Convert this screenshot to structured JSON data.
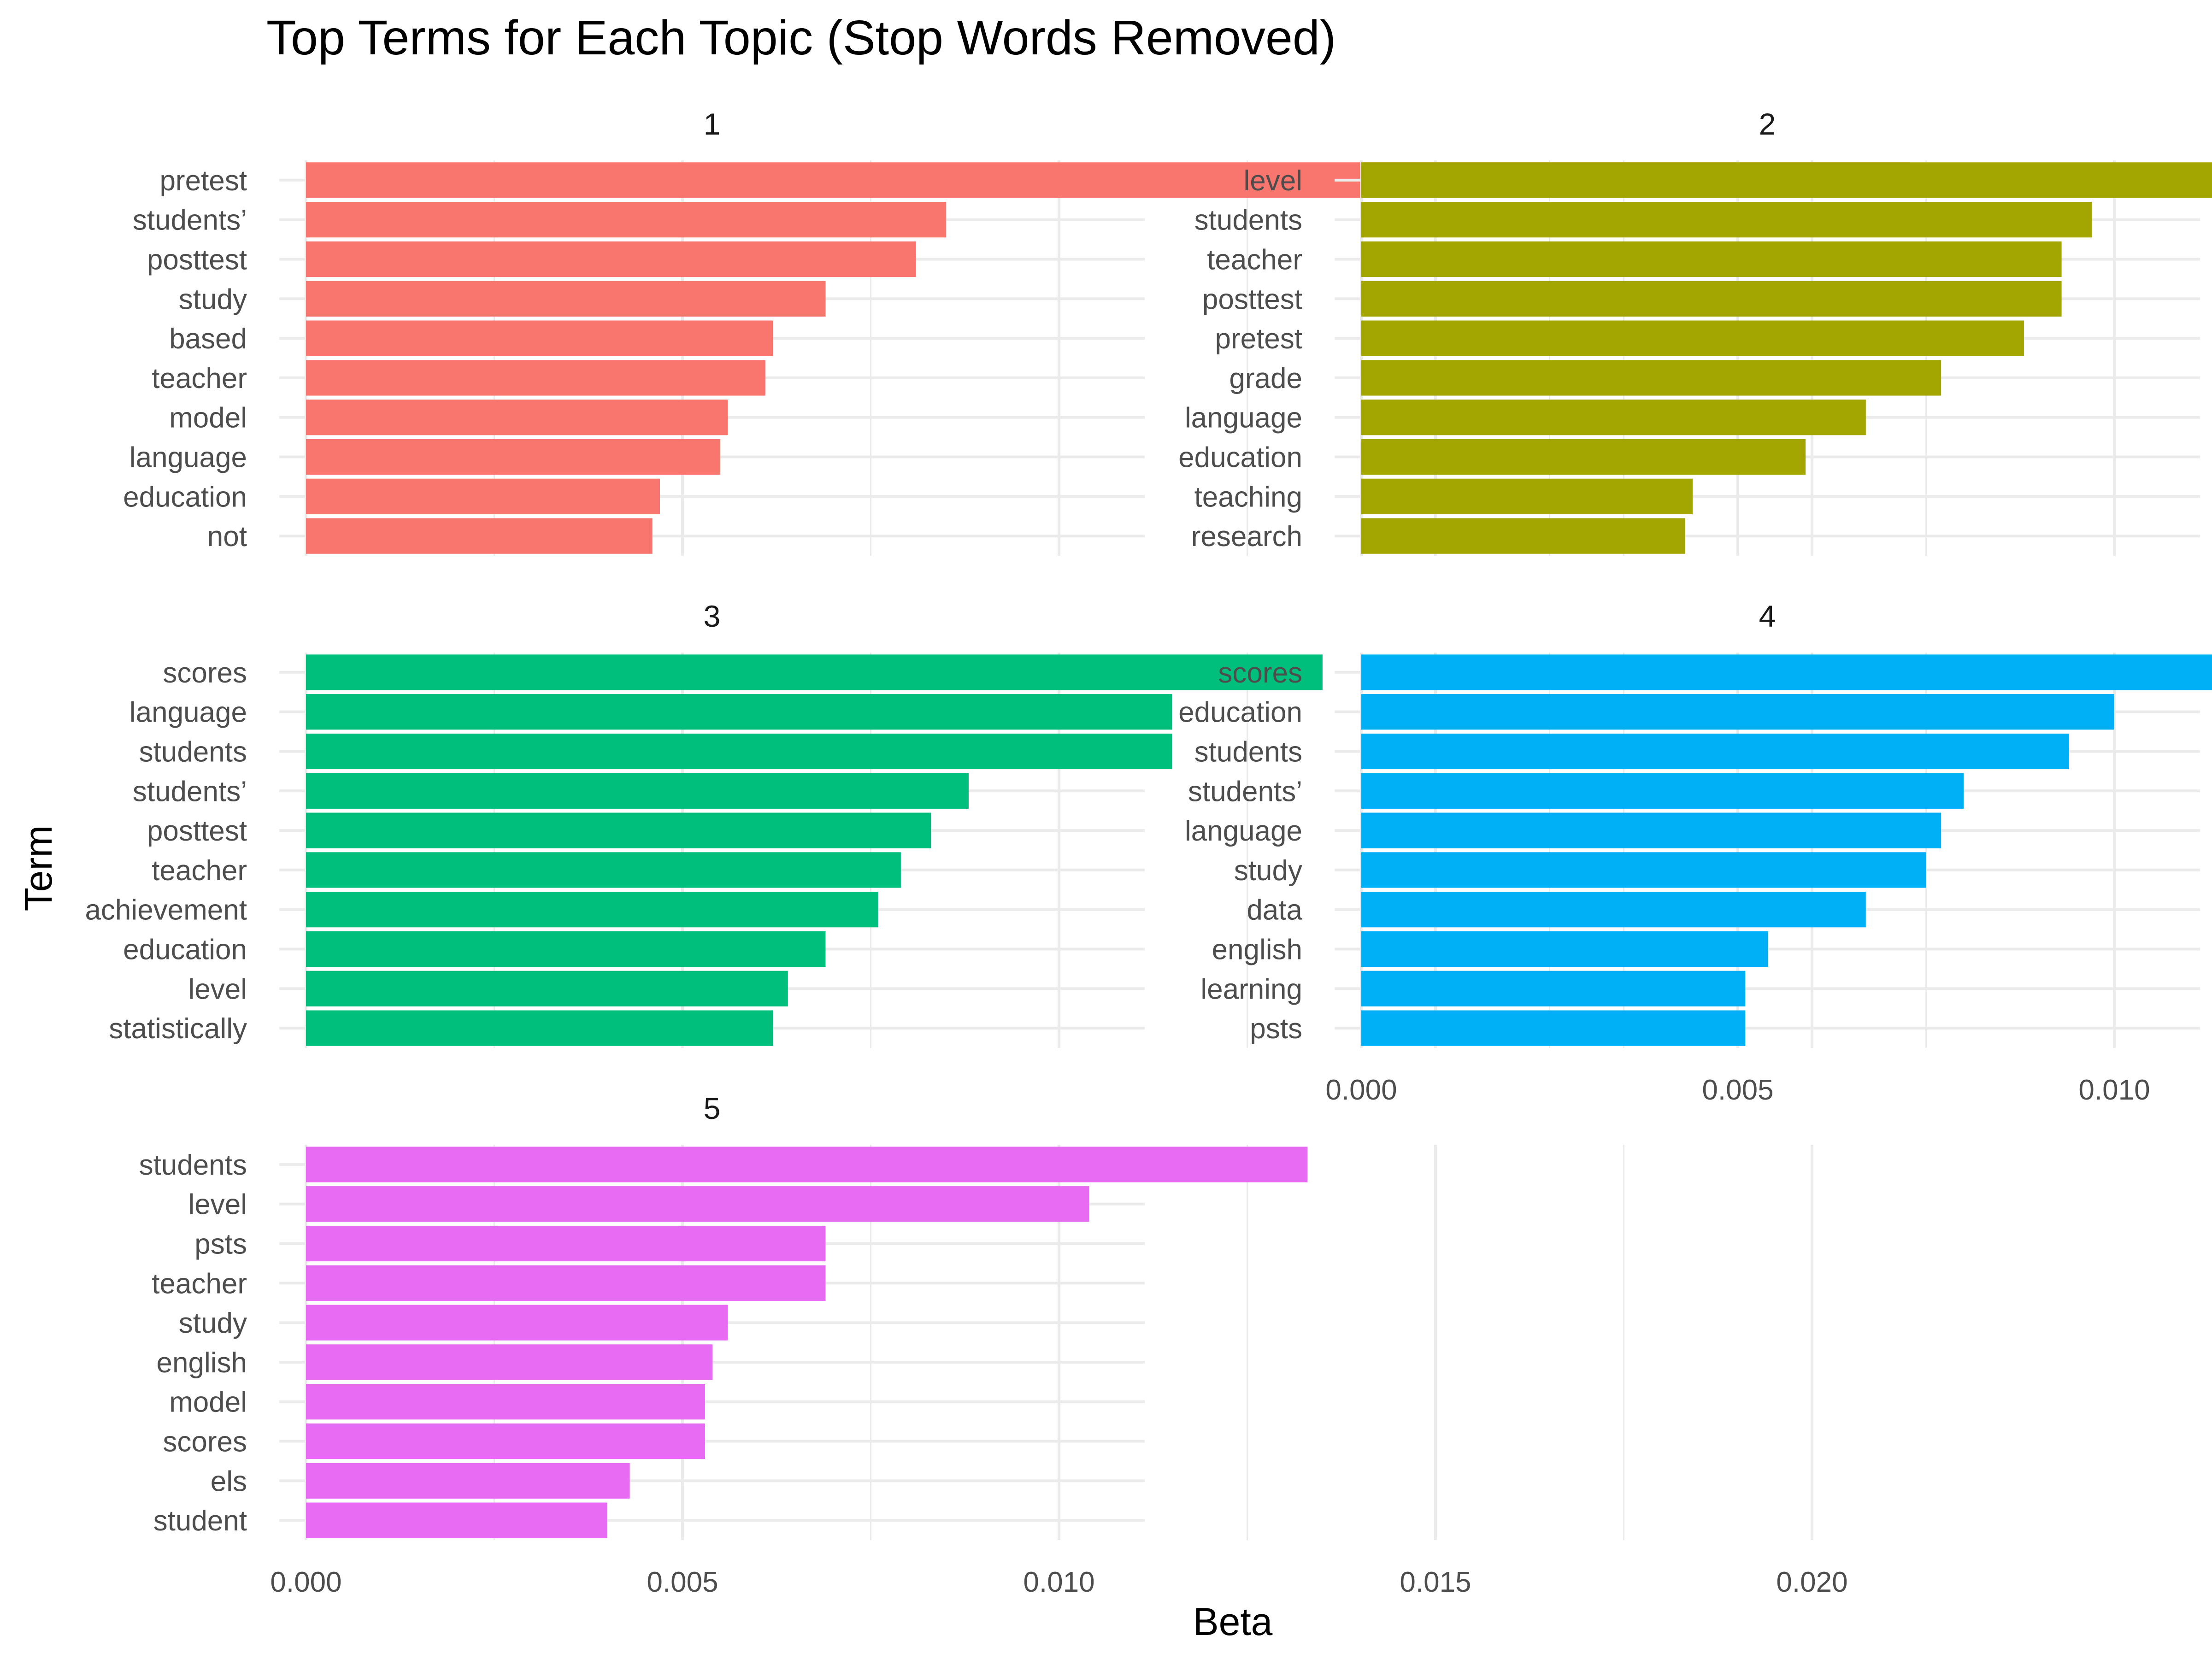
{
  "chart_data": {
    "type": "bar",
    "orientation": "horizontal",
    "title": "Top Terms for Each Topic (Stop Words Removed)",
    "xlabel": "Beta",
    "ylabel": "Term",
    "xlim": [
      0,
      0.022
    ],
    "x_ticks": [
      "0.000",
      "0.005",
      "0.010",
      "0.015",
      "0.020"
    ],
    "grid": true,
    "legend": "none",
    "facets": [
      {
        "label": "1",
        "color": "#F8766D",
        "terms": [
          "pretest",
          "students’",
          "posttest",
          "study",
          "based",
          "teacher",
          "model",
          "language",
          "education",
          "not"
        ],
        "values": [
          0.0213,
          0.0085,
          0.0081,
          0.0069,
          0.0062,
          0.0061,
          0.0056,
          0.0055,
          0.0047,
          0.0046
        ]
      },
      {
        "label": "2",
        "color": "#A3A500",
        "terms": [
          "level",
          "students",
          "teacher",
          "posttest",
          "pretest",
          "grade",
          "language",
          "education",
          "teaching",
          "research"
        ],
        "values": [
          0.0119,
          0.0097,
          0.0093,
          0.0093,
          0.0088,
          0.0077,
          0.0067,
          0.0059,
          0.0044,
          0.0043
        ]
      },
      {
        "label": "3",
        "color": "#00BF7D",
        "terms": [
          "scores",
          "language",
          "students",
          "students’",
          "posttest",
          "teacher",
          "achievement",
          "education",
          "level",
          "statistically"
        ],
        "values": [
          0.0135,
          0.0115,
          0.0115,
          0.0088,
          0.0083,
          0.0079,
          0.0076,
          0.0069,
          0.0064,
          0.0062
        ]
      },
      {
        "label": "4",
        "color": "#00B0F6",
        "terms": [
          "scores",
          "education",
          "students",
          "students’",
          "language",
          "study",
          "data",
          "english",
          "learning",
          "psts"
        ],
        "values": [
          0.013,
          0.01,
          0.0094,
          0.008,
          0.0077,
          0.0075,
          0.0067,
          0.0054,
          0.0051,
          0.0051
        ]
      },
      {
        "label": "5",
        "color": "#E76BF3",
        "terms": [
          "students",
          "level",
          "psts",
          "teacher",
          "study",
          "english",
          "model",
          "scores",
          "els",
          "student"
        ],
        "values": [
          0.0133,
          0.0104,
          0.0069,
          0.0069,
          0.0056,
          0.0054,
          0.0053,
          0.0053,
          0.0043,
          0.004
        ]
      }
    ]
  }
}
